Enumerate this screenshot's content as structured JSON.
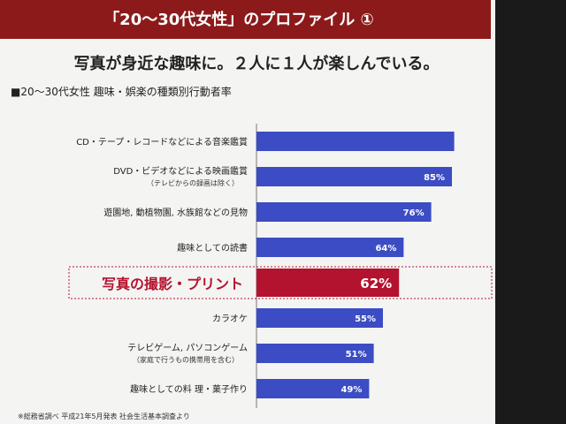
{
  "chart_data": {
    "type": "hbar",
    "title": "「20～30代女性」のプロファイル ①",
    "subtitle": "写真が身近な趣味に。２人に１人が楽しんでいる。",
    "chart_label": "■20～30代女性 趣味・娯楽の種類別行動者率",
    "footnote": "※総務省調べ 平成21年5月発表 社会生活基本調査より",
    "categories": [
      "CD・テープ・レコードなどによる音楽鑑賞",
      "DVD・ビデオなどによる映画鑑賞",
      "遊園地, 動植物園, 水族館などの見物",
      "趣味としての読書",
      "写真の撮影・プリント",
      "カラオケ",
      "テレビゲーム, パソコンゲーム",
      "趣味としての料 理・菓子作り"
    ],
    "sublabels": [
      null,
      "（テレビからの録画は除く）",
      null,
      null,
      null,
      null,
      "（家庭で行うもの携帯用を含む）",
      null
    ],
    "values": [
      86,
      85,
      76,
      64,
      62,
      55,
      51,
      49
    ],
    "value_labels": [
      null,
      "85%",
      "76%",
      "64%",
      "62%",
      "55%",
      "51%",
      "49%"
    ],
    "xlim": [
      0,
      100
    ],
    "color": "#3b4cc4",
    "highlight_color": "#b3132e",
    "highlight_index": 4
  }
}
